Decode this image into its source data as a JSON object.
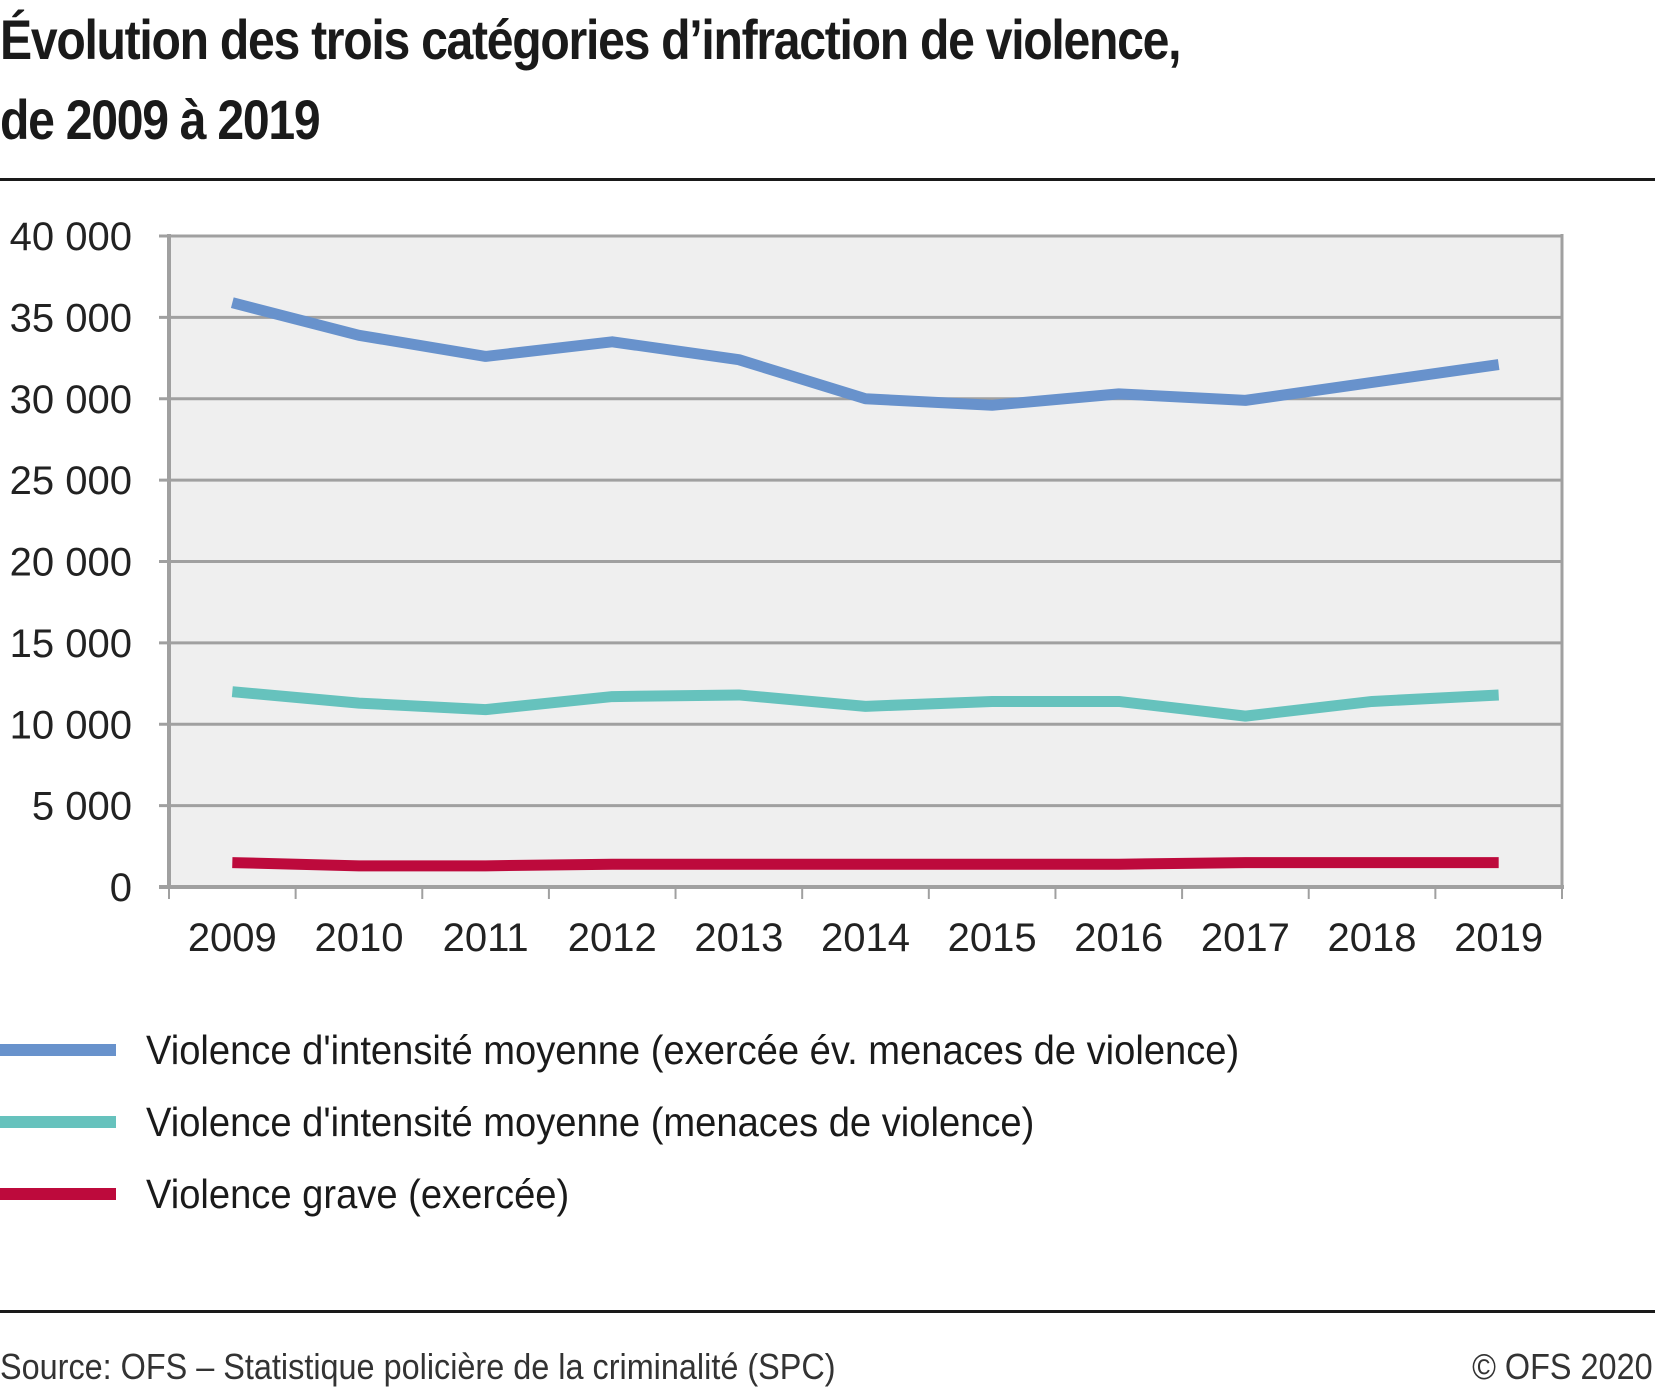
{
  "title_line1": "Évolution des trois catégories d’infraction de violence,",
  "title_line2": "de 2009 à 2019",
  "chart_data": {
    "type": "line",
    "title": "Évolution des trois catégories d’infraction de violence, de 2009 à 2019",
    "xlabel": "",
    "ylabel": "",
    "x": [
      "2009",
      "2010",
      "2011",
      "2012",
      "2013",
      "2014",
      "2015",
      "2016",
      "2017",
      "2018",
      "2019"
    ],
    "ylim": [
      0,
      40000
    ],
    "yticks": [
      0,
      5000,
      10000,
      15000,
      20000,
      25000,
      30000,
      35000,
      40000
    ],
    "ytick_labels": [
      "0",
      "5 000",
      "10 000",
      "15 000",
      "20 000",
      "25 000",
      "30 000",
      "35 000",
      "40 000"
    ],
    "grid": true,
    "legend_position": "bottom",
    "series": [
      {
        "name": "Violence d'intensité moyenne (exercée év. menaces de violence)",
        "color": "#6892cc",
        "values": [
          35900,
          33900,
          32600,
          33500,
          32400,
          30000,
          29600,
          30300,
          29900,
          31000,
          32100
        ]
      },
      {
        "name": "Violence d'intensité moyenne (menaces de violence)",
        "color": "#66c2bd",
        "values": [
          12000,
          11300,
          10900,
          11700,
          11800,
          11100,
          11400,
          11400,
          10500,
          11400,
          11800
        ]
      },
      {
        "name": "Violence grave (exercée)",
        "color": "#bd0a3c",
        "values": [
          1500,
          1300,
          1300,
          1400,
          1400,
          1400,
          1400,
          1400,
          1500,
          1500,
          1500
        ]
      }
    ]
  },
  "footer": {
    "source": "Source: OFS – Statistique policière de la criminalité (SPC)",
    "copyright": "© OFS 2020"
  },
  "colors": {
    "plot_background": "#efefef",
    "gridline": "#a0a0a0",
    "rule": "#1a1a1a"
  }
}
